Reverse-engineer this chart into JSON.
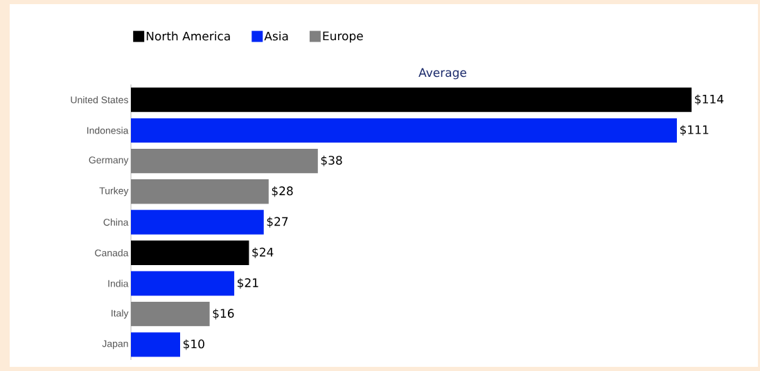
{
  "chart_data": {
    "type": "bar",
    "orientation": "horizontal",
    "stacked": true,
    "title": "Average",
    "legend": "top",
    "categories": [
      "United States",
      "Indonesia",
      "Germany",
      "Turkey",
      "China",
      "Canada",
      "India",
      "Italy",
      "Japan"
    ],
    "series": [
      {
        "name": "North America",
        "color": "#000000",
        "values": [
          114,
          null,
          null,
          null,
          null,
          24,
          null,
          null,
          null
        ],
        "value_labels": [
          "$114",
          null,
          null,
          null,
          null,
          "$24",
          null,
          null,
          null
        ]
      },
      {
        "name": "Asia",
        "color": "#0026f5",
        "values": [
          null,
          111,
          null,
          null,
          27,
          null,
          21,
          null,
          10
        ],
        "value_labels": [
          null,
          "$111",
          null,
          null,
          "$27",
          null,
          "$21",
          null,
          "$10"
        ]
      },
      {
        "name": "Europe",
        "color": "#808080",
        "values": [
          null,
          null,
          38,
          28,
          null,
          null,
          null,
          16,
          null
        ],
        "value_labels": [
          null,
          null,
          "$38",
          "$28",
          null,
          null,
          null,
          "$16",
          null
        ]
      }
    ]
  }
}
